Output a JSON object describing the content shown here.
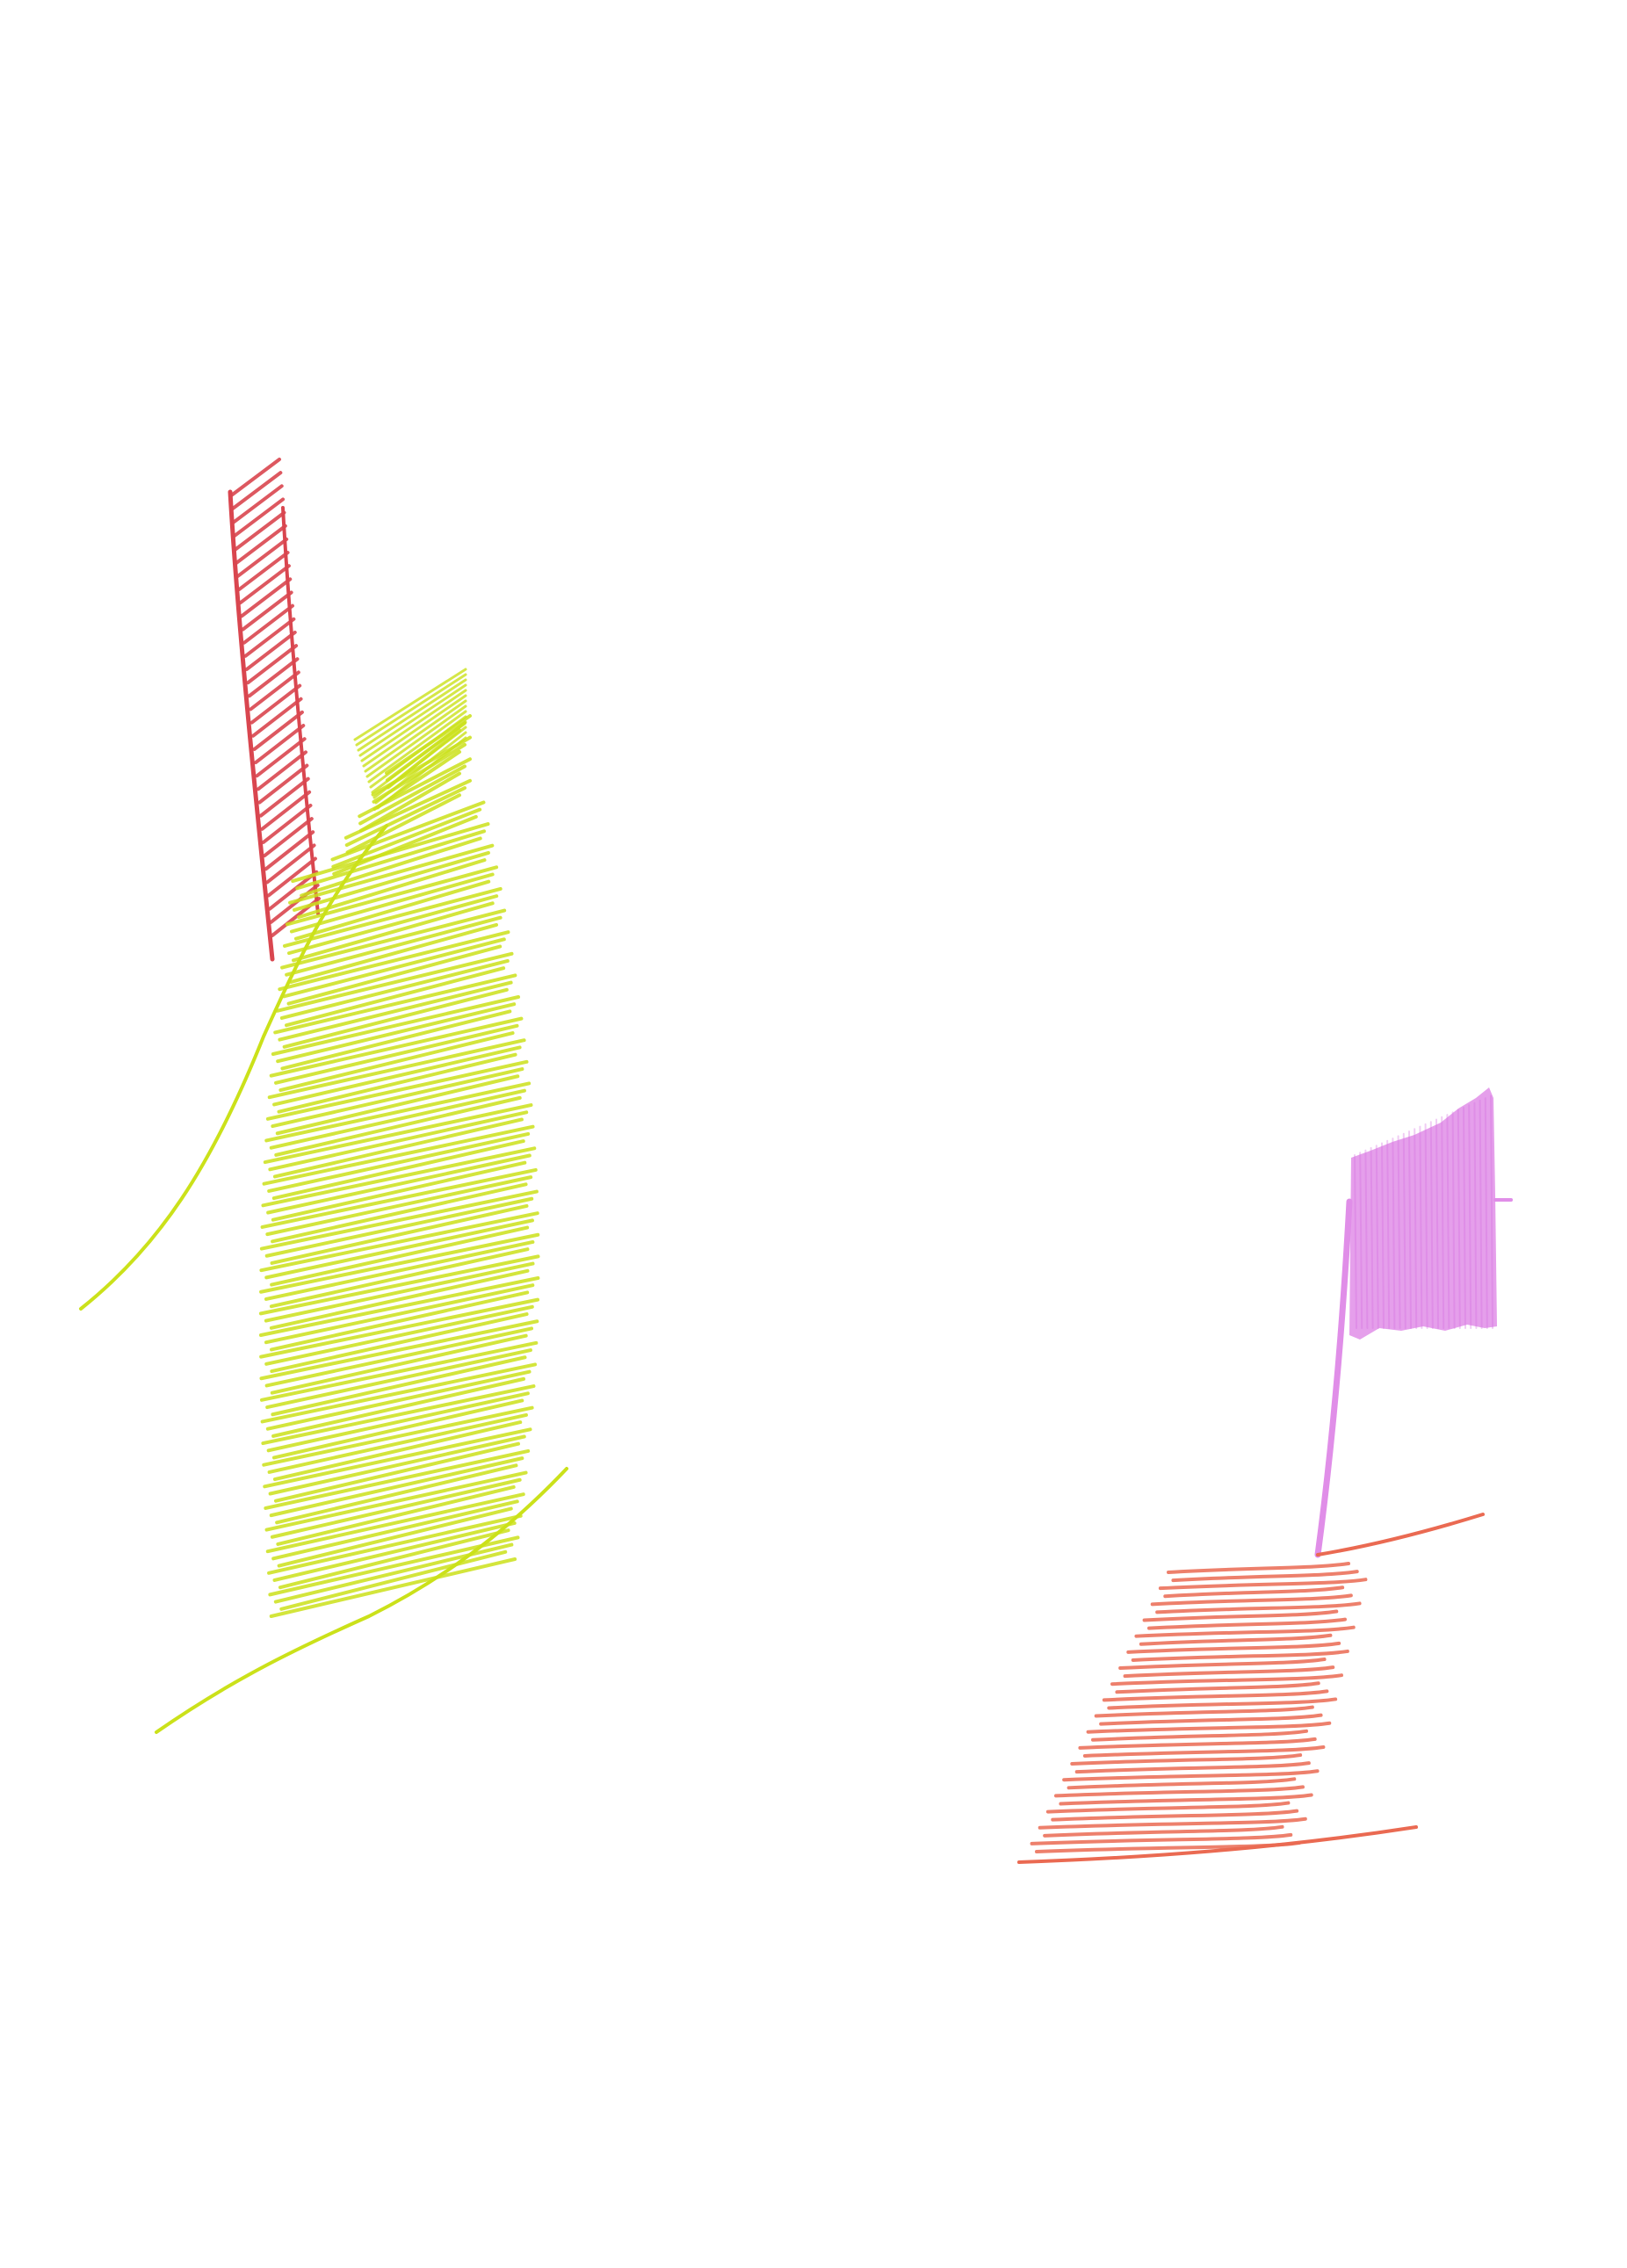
{
  "drawing": {
    "background_color": "#ffffff",
    "elements": [
      {
        "name": "red-hatched-stroke",
        "color": "#d9464f",
        "kind": "diagonal-hatch"
      },
      {
        "name": "yellow-green-scribble",
        "color": "#cbe11a",
        "kind": "dense-scribble"
      },
      {
        "name": "yellow-green-curve-upper",
        "color": "#cbe11a",
        "kind": "line"
      },
      {
        "name": "yellow-green-curve-lower",
        "color": "#cbe11a",
        "kind": "line"
      },
      {
        "name": "pink-flag",
        "color": "#e08ee8",
        "kind": "filled-shape"
      },
      {
        "name": "pink-flag-pole",
        "color": "#e08ee8",
        "kind": "line"
      },
      {
        "name": "salmon-hatched-base",
        "color": "#ea6a52",
        "kind": "horizontal-hatch"
      }
    ]
  }
}
